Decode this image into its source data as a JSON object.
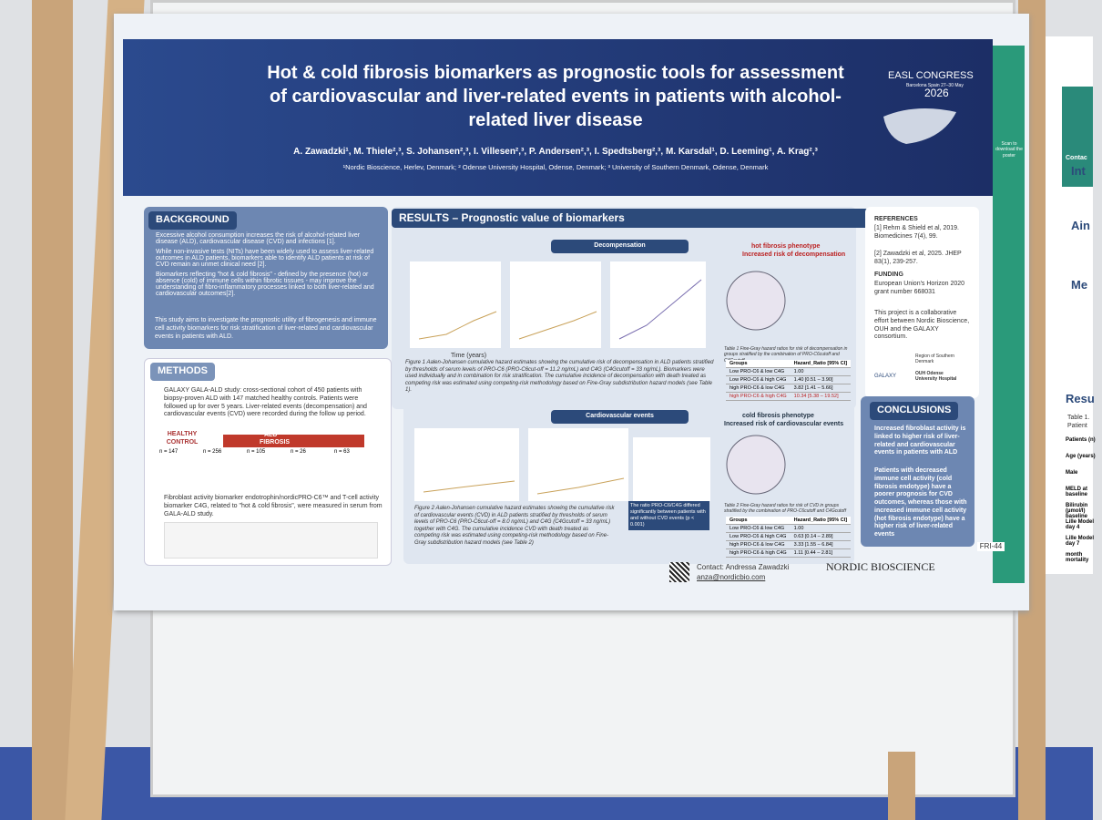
{
  "header": {
    "title": "Hot & cold fibrosis biomarkers as prognostic tools for assessment of cardiovascular and liver-related events in patients with alcohol-related liver disease",
    "authors": "A. Zawadzki¹, M. Thiele²,³, S. Johansen²,³, I. Villesen²,³, P. Andersen²,³, I. Spedtsberg²,³, M. Karsdal¹, D. Leeming¹, A. Krag²,³",
    "affiliations": "¹Nordic Bioscience, Herlev, Denmark; ² Odense University Hospital, Odense, Denmark; ³ University of Southern Denmark, Odense, Denmark",
    "congress": "EASL CONGRESS",
    "venue": "Barcelona Spain 27–30 May",
    "year": "2026"
  },
  "background": {
    "heading": "BACKGROUND",
    "bullets": [
      "Excessive alcohol consumption increases the risk of alcohol-related liver disease (ALD), cardiovascular disease (CVD) and infections [1].",
      "While non-invasive tests (NITs) have been widely used to assess liver-related outcomes in ALD patients, biomarkers able to identify ALD patients at risk of CVD remain an unmet clinical need [2].",
      "Biomarkers reflecting \"hot & cold fibrosis\" - defined by the presence (hot) or absence (cold) of immune cells within fibrotic tissues - may improve the understanding of fibro-inflammatory processes linked to both liver-related and cardiovascular outcomes[2]."
    ],
    "aim": "This study aims to investigate the prognostic utility of fibrogenesis and immune cell activity biomarkers for risk stratification of liver-related and cardiovascular events in patients with ALD."
  },
  "methods": {
    "heading": "METHODS",
    "bullets": [
      "GALAXY GALA-ALD study: cross-sectional cohort of 450 patients with biopsy-proven ALD with 147 matched healthy controls. Patients were followed up for over 5 years. Liver-related events (decompensation) and cardiovascular events (CVD) were recorded during the follow up period.",
      "Fibroblast activity biomarker endotrophin/nordicPRO-C6™ and T-cell activity biomarker C4G, related to \"hot & cold fibrosis\", were measured in serum from GALA-ALD study."
    ],
    "control": "HEALTHY CONTROL",
    "ald": "ALD",
    "fibrosis": "FIBROSIS",
    "counts": [
      "n = 147",
      "n = 256",
      "n = 105",
      "n = 26",
      "n = 63"
    ]
  },
  "results": {
    "heading": "RESULTS – Prognostic value of biomarkers",
    "decompensation": "Decompensation",
    "figure1": "Figure 1 Aalen-Johansen cumulative hazard estimates showing the cumulative risk of decompensation in ALD patients stratified by thresholds of serum levels of PRO-C6 (PRO-C6cut-off = 11.2 ng/mL) and C4G (C4Gcutoff = 33 ng/mL). Biomarkers were used individually and in combination for risk stratification. The cumulative incidence of decompensation with death treated as competing risk was estimated using competing-risk methodology based on Fine-Gray subdistribution hazard models (see Table 1).",
    "hot": "hot fibrosis phenotype",
    "hot_risk": "Increased risk of decompensation",
    "table1_caption": "Table 1 Fine-Gray hazard ratios for risk of decompensation in groups stratified by the combination of PRO-C6cutoff and C4Gcutoff",
    "table_header": [
      "Groups",
      "Hazard_Ratio [95% CI]"
    ],
    "table1": [
      [
        "Low PRO-C6 & low C4G",
        "1.00"
      ],
      [
        "Low PRO-C6 & high C4G",
        "1.40 [0.51 – 3.90]"
      ],
      [
        "high PRO-C6 & low C4G",
        "3.82 [1.41 – 5.66]"
      ],
      [
        "high PRO-C6 & high C4G",
        "10.34 [5.38 – 19.52]"
      ]
    ],
    "cardio": "Cardiovascular events",
    "figure2": "Figure 2 Aalen-Johansen cumulative hazard estimates showing the cumulative risk of cardiovascular events (CVD) in ALD patients stratified by thresholds of serum levels of PRO-C6 (PRO-C6cut-off = 8.0 ng/mL) and C4G (C4Gcutoff = 33 ng/mL) together with C4G. The cumulative incidence CVD with death treated as competing risk was estimated using competing-risk methodology based on Fine-Gray subdistribution hazard models (see Table 2)",
    "ratio_note": "The ratio PRO-C6/C4G differed significantly between patients with and without CVD events (p < 0.001)",
    "cold": "cold fibrosis phenotype",
    "cold_risk": "Increased risk of cardiovascular events",
    "table2_caption": "Table 2 Fine-Gray hazard ratios for risk of CVD in groups stratified by the combination of PRO-C6cutoff and C4Gcutoff",
    "table2": [
      [
        "Low PRO-C6 & low C4G",
        "1.00"
      ],
      [
        "Low PRO-C6 & high C4G",
        "0.63 [0.14 – 2.89]"
      ],
      [
        "high PRO-C6 & low C4G",
        "3.33 [1.55 – 6.84]"
      ],
      [
        "high PRO-C6 & high C4G",
        "1.11 [0.44 – 2.81]"
      ]
    ],
    "time": "Time (years)"
  },
  "side": {
    "references_heading": "REFERENCES",
    "references": [
      "[1] Rehm & Shield et al, 2019. Biomedicines 7(4), 99.",
      "[2] Zawadzki et al, 2025. JHEP 83(1), 239-257."
    ],
    "funding_heading": "FUNDING",
    "funding": "European Union's Horizon 2020 grant number 668031",
    "collab": "This project is a collaborative effort between Nordic Bioscience, OUH and the GALAXY consortium.",
    "galaxy": "GALAXY",
    "region": "Region of Southern Denmark",
    "ouh": "OUH Odense University Hospital"
  },
  "conclusions": {
    "heading": "CONCLUSIONS",
    "bullets": [
      "Increased fibroblast activity is linked to higher risk of liver-related and cardiovascular events in patients with ALD",
      "Patients with decreased immune cell activity (cold fibrosis endotype) have a poorer prognosis for CVD outcomes, whereas those with increased immune cell activity (hot fibrosis endotype) have a higher risk of liver-related events"
    ]
  },
  "footer": {
    "contact": "Contact: Andressa Zawadzki",
    "email": "anza@nordicbio.com",
    "company": "NORDIC BIOSCIENCE",
    "code": "FRI-44",
    "scan": "Scan to download the poster"
  },
  "neighbor": {
    "contact": "Contac",
    "intro": "Int",
    "aim": "Ain",
    "methods": "Me",
    "results": "Resu",
    "table": "Table 1. Patient",
    "rows": [
      "Patients (n)",
      "Age (years)",
      "Male",
      "MELD at baseline",
      "Bilirubin (µmol/l) baseline",
      "Lille Model day 4",
      "Lille Model day 7",
      "month mortality"
    ]
  }
}
